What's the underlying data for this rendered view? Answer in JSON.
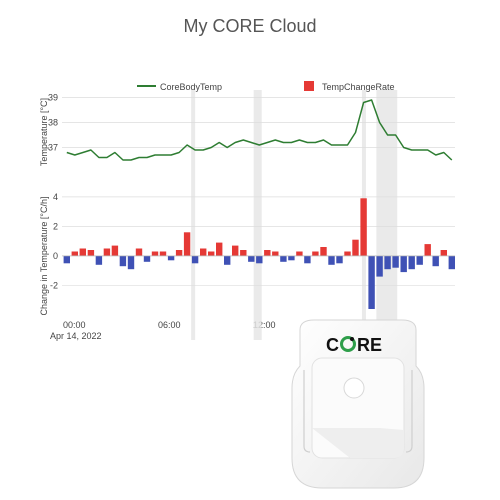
{
  "page": {
    "title": "My CORE Cloud"
  },
  "legend": {
    "series1": "CoreBodyTemp",
    "series2": "TempChangeRate"
  },
  "axes": {
    "y_top_label": "Temperature [°C]",
    "y_bottom_label": "Change in Temperature [°C/h]",
    "x_ticks": [
      "00:00",
      "06:00",
      "12:00"
    ],
    "x_date": "Apr 14, 2022"
  },
  "device": {
    "brand": "CORE"
  },
  "colors": {
    "temp_line": "#2e7d32",
    "rate_positive": "#e53935",
    "rate_negative": "#3f51b5",
    "highlight_band": "#e6e6e6",
    "grid": "#dddddd"
  },
  "chart_data": [
    {
      "type": "line",
      "name": "CoreBodyTemp",
      "ylabel": "Temperature [°C]",
      "yticks": [
        37,
        38,
        39
      ],
      "ylim": [
        36.1,
        39.1
      ],
      "x_unit": "hours since 00:00 Apr 14, 2022",
      "xlim": [
        -0.3,
        24.2
      ],
      "x": [
        0,
        0.5,
        1,
        1.5,
        2,
        2.5,
        3,
        3.5,
        4,
        4.5,
        5,
        5.5,
        6,
        6.5,
        7,
        7.5,
        8,
        8.5,
        9,
        9.5,
        10,
        10.5,
        11,
        11.5,
        12,
        12.5,
        13,
        13.5,
        14,
        14.5,
        15,
        15.5,
        16,
        16.5,
        17,
        17.5,
        18,
        18.5,
        19,
        19.5,
        20,
        20.5,
        21,
        21.5,
        22,
        22.5,
        23,
        23.5,
        24
      ],
      "values": [
        36.8,
        36.7,
        36.8,
        36.9,
        36.6,
        36.6,
        36.8,
        36.5,
        36.5,
        36.6,
        36.6,
        36.7,
        36.7,
        36.7,
        36.8,
        37.1,
        36.9,
        36.9,
        37.0,
        37.2,
        37.0,
        37.2,
        37.3,
        37.2,
        37.1,
        37.2,
        37.3,
        37.2,
        37.2,
        37.3,
        37.2,
        37.2,
        37.3,
        37.1,
        37.1,
        37.1,
        37.6,
        38.8,
        38.9,
        38.0,
        37.5,
        37.5,
        37.0,
        36.9,
        36.9,
        36.9,
        36.7,
        36.8,
        36.5
      ],
      "highlight_bands": [
        [
          7.75,
          8.0
        ],
        [
          11.65,
          12.15
        ],
        [
          18.4,
          18.65
        ],
        [
          19.3,
          20.6
        ]
      ]
    },
    {
      "type": "bar",
      "name": "TempChangeRate",
      "ylabel": "Change in Temperature [°C/h]",
      "yticks": [
        -2,
        0,
        2,
        4
      ],
      "ylim": [
        -3.8,
        4.6
      ],
      "x_unit": "hours since 00:00 Apr 14, 2022",
      "x": [
        0,
        0.5,
        1,
        1.5,
        2,
        2.5,
        3,
        3.5,
        4,
        4.5,
        5,
        5.5,
        6,
        6.5,
        7,
        7.5,
        8,
        8.5,
        9,
        9.5,
        10,
        10.5,
        11,
        11.5,
        12,
        12.5,
        13,
        13.5,
        14,
        14.5,
        15,
        15.5,
        16,
        16.5,
        17,
        17.5,
        18,
        18.5,
        19,
        19.5,
        20,
        20.5,
        21,
        21.5,
        22,
        22.5,
        23,
        23.5,
        24
      ],
      "values": [
        -0.5,
        0.3,
        0.5,
        0.4,
        -0.6,
        0.5,
        0.7,
        -0.7,
        -0.9,
        0.5,
        -0.4,
        0.3,
        0.3,
        -0.3,
        0.4,
        1.6,
        -0.5,
        0.5,
        0.3,
        0.9,
        -0.6,
        0.7,
        0.4,
        -0.4,
        -0.5,
        0.4,
        0.3,
        -0.4,
        -0.3,
        0.3,
        -0.5,
        0.3,
        0.6,
        -0.6,
        -0.5,
        0.3,
        1.1,
        3.9,
        -3.6,
        -1.4,
        -0.9,
        -0.8,
        -1.1,
        -0.9,
        -0.6,
        0.8,
        -0.7,
        0.4,
        -0.9
      ]
    }
  ]
}
